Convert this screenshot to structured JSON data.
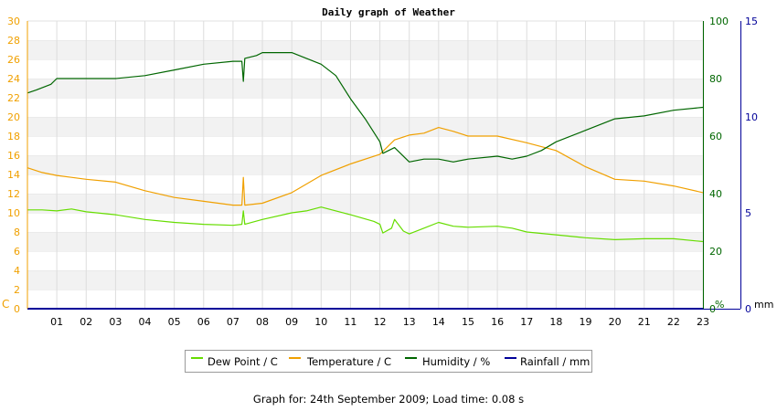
{
  "chart_data": {
    "type": "line",
    "title": "Daily graph of Weather",
    "x_ticks": [
      "01",
      "02",
      "03",
      "04",
      "05",
      "06",
      "07",
      "08",
      "09",
      "10",
      "11",
      "12",
      "13",
      "14",
      "15",
      "16",
      "17",
      "18",
      "19",
      "20",
      "21",
      "22",
      "23"
    ],
    "xlim": [
      0,
      23
    ],
    "y_left": {
      "unit_label": "C",
      "ticks": [
        0,
        2,
        4,
        6,
        8,
        10,
        12,
        14,
        16,
        18,
        20,
        22,
        24,
        26,
        28,
        30
      ],
      "range": [
        0,
        30
      ],
      "color": "#f0a000"
    },
    "y_right_humidity": {
      "unit_label": "%",
      "ticks": [
        0,
        20,
        40,
        60,
        80,
        100
      ],
      "range": [
        0,
        100
      ],
      "color": "#006600"
    },
    "y_right_rain": {
      "unit_label": "mm",
      "ticks": [
        0,
        5,
        10,
        15
      ],
      "range": [
        0,
        15
      ],
      "color": "#000099"
    },
    "grid": true,
    "legend_position": "bottom",
    "series": [
      {
        "name": "Dew Point / C",
        "color": "#66dd00",
        "axis": "temp",
        "x": [
          0,
          0.5,
          1,
          1.5,
          2,
          3,
          4,
          5,
          6,
          7,
          7.3,
          7.35,
          7.4,
          8,
          9,
          9.5,
          10,
          11,
          11.8,
          12,
          12.1,
          12.4,
          12.5,
          12.8,
          13,
          13.5,
          14,
          14.5,
          15,
          16,
          16.5,
          17,
          18,
          19,
          20,
          21,
          22,
          23
        ],
        "y": [
          10.3,
          10.3,
          10.2,
          10.4,
          10.1,
          9.8,
          9.3,
          9.0,
          8.8,
          8.7,
          8.8,
          10.2,
          8.8,
          9.3,
          10.0,
          10.2,
          10.6,
          9.8,
          9.1,
          8.8,
          7.9,
          8.4,
          9.3,
          8.1,
          7.8,
          8.4,
          9.0,
          8.6,
          8.5,
          8.6,
          8.4,
          8.0,
          7.7,
          7.4,
          7.2,
          7.3,
          7.3,
          7.0
        ]
      },
      {
        "name": "Temperature / C",
        "color": "#f0a000",
        "axis": "temp",
        "x": [
          0,
          0.5,
          1,
          1.5,
          2,
          3,
          4,
          5,
          6,
          7,
          7.3,
          7.35,
          7.4,
          8,
          9,
          10,
          11,
          12,
          12.5,
          13,
          13.5,
          14,
          14.5,
          15,
          16,
          17,
          17.5,
          18,
          19,
          20,
          21,
          22,
          23
        ],
        "y": [
          14.7,
          14.2,
          13.9,
          13.7,
          13.5,
          13.2,
          12.3,
          11.6,
          11.2,
          10.8,
          10.8,
          13.7,
          10.8,
          11.0,
          12.1,
          13.9,
          15.1,
          16.1,
          17.6,
          18.1,
          18.3,
          18.9,
          18.5,
          18.0,
          18.0,
          17.3,
          16.9,
          16.5,
          14.8,
          13.5,
          13.3,
          12.8,
          12.1
        ]
      },
      {
        "name": "Humidity / %",
        "color": "#006600",
        "axis": "humidity",
        "x": [
          0,
          0.3,
          0.8,
          1,
          2,
          3,
          4,
          5,
          6,
          7,
          7.3,
          7.35,
          7.4,
          7.8,
          8,
          9,
          9.5,
          10,
          10.5,
          11,
          11.5,
          12,
          12.1,
          12.5,
          13,
          13.5,
          14,
          14.5,
          15,
          16,
          16.5,
          17,
          17.5,
          18,
          19,
          20,
          21,
          22,
          23
        ],
        "y": [
          75,
          76,
          78,
          80,
          80,
          80,
          81,
          83,
          85,
          86,
          86,
          79,
          87,
          88,
          89,
          89,
          87,
          85,
          81,
          73,
          66,
          58,
          54,
          56,
          51,
          52,
          52,
          51,
          52,
          53,
          52,
          53,
          55,
          58,
          62,
          66,
          67,
          69,
          70
        ]
      },
      {
        "name": "Rainfall / mm",
        "color": "#000099",
        "axis": "rain",
        "x": [
          0,
          23
        ],
        "y": [
          0,
          0
        ]
      }
    ]
  },
  "legend": [
    {
      "label": "Dew Point / C",
      "color": "#66dd00"
    },
    {
      "label": "Temperature / C",
      "color": "#f0a000"
    },
    {
      "label": "Humidity / %",
      "color": "#006600"
    },
    {
      "label": "Rainfall / mm",
      "color": "#000099"
    }
  ],
  "footer": "Graph for: 24th September 2009; Load time: 0.08 s"
}
